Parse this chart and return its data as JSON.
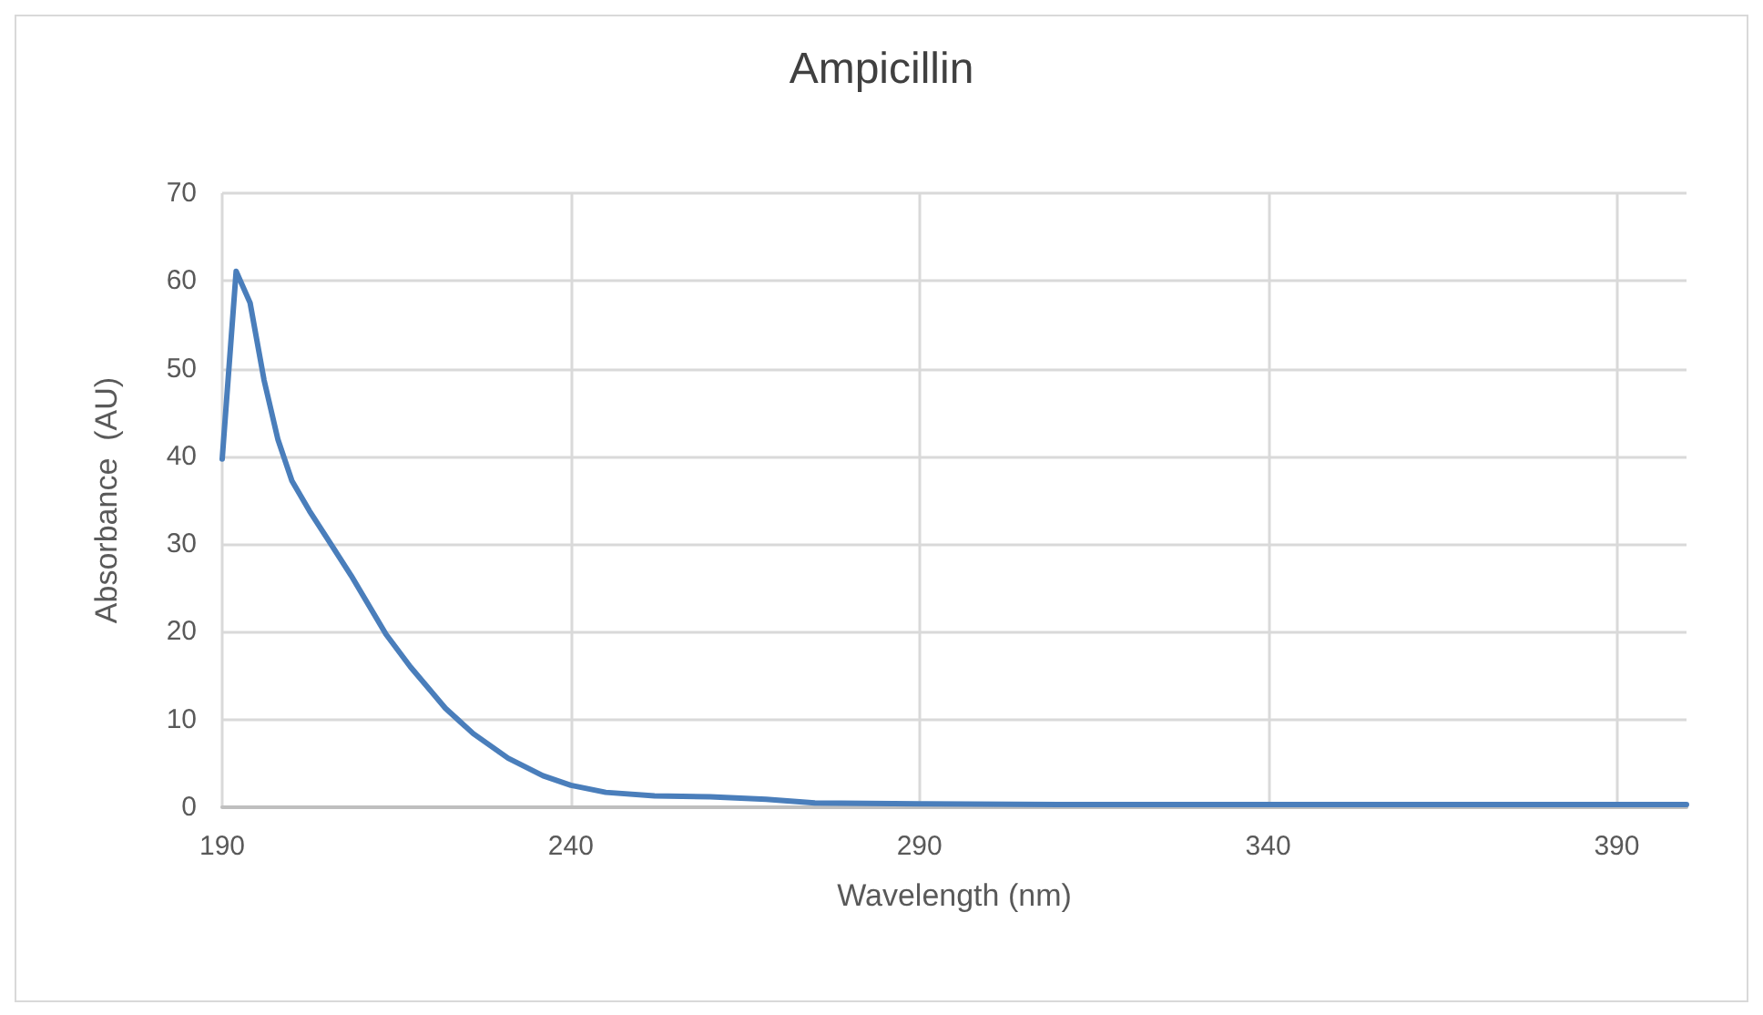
{
  "chart_data": {
    "type": "line",
    "title": "Ampicillin",
    "xlabel": "Wavelength (nm)",
    "ylabel": "Absorbance  (AU)",
    "x": [
      190,
      192,
      194,
      196,
      198,
      200,
      202.5,
      205.5,
      208.5,
      213.5,
      217,
      222,
      226,
      231,
      236,
      240,
      245,
      252,
      260,
      268,
      275,
      290,
      310,
      340,
      370,
      400
    ],
    "series": [
      {
        "color": "#4a7ebb",
        "values": [
          39.7,
          61.1,
          57.5,
          48.7,
          41.9,
          37.2,
          33.8,
          30.1,
          26.4,
          19.7,
          16.0,
          11.3,
          8.4,
          5.6,
          3.6,
          2.5,
          1.7,
          1.3,
          1.2,
          0.9,
          0.5,
          0.4,
          0.3,
          0.3,
          0.3,
          0.3
        ]
      }
    ],
    "xlim": [
      190,
      400
    ],
    "xticks": [
      190,
      240,
      290,
      340,
      390
    ],
    "ylim": [
      0,
      70
    ],
    "yticks": [
      0,
      10,
      20,
      30,
      40,
      50,
      60,
      70
    ],
    "grid": true,
    "marker": "none",
    "line_style": "solid"
  }
}
